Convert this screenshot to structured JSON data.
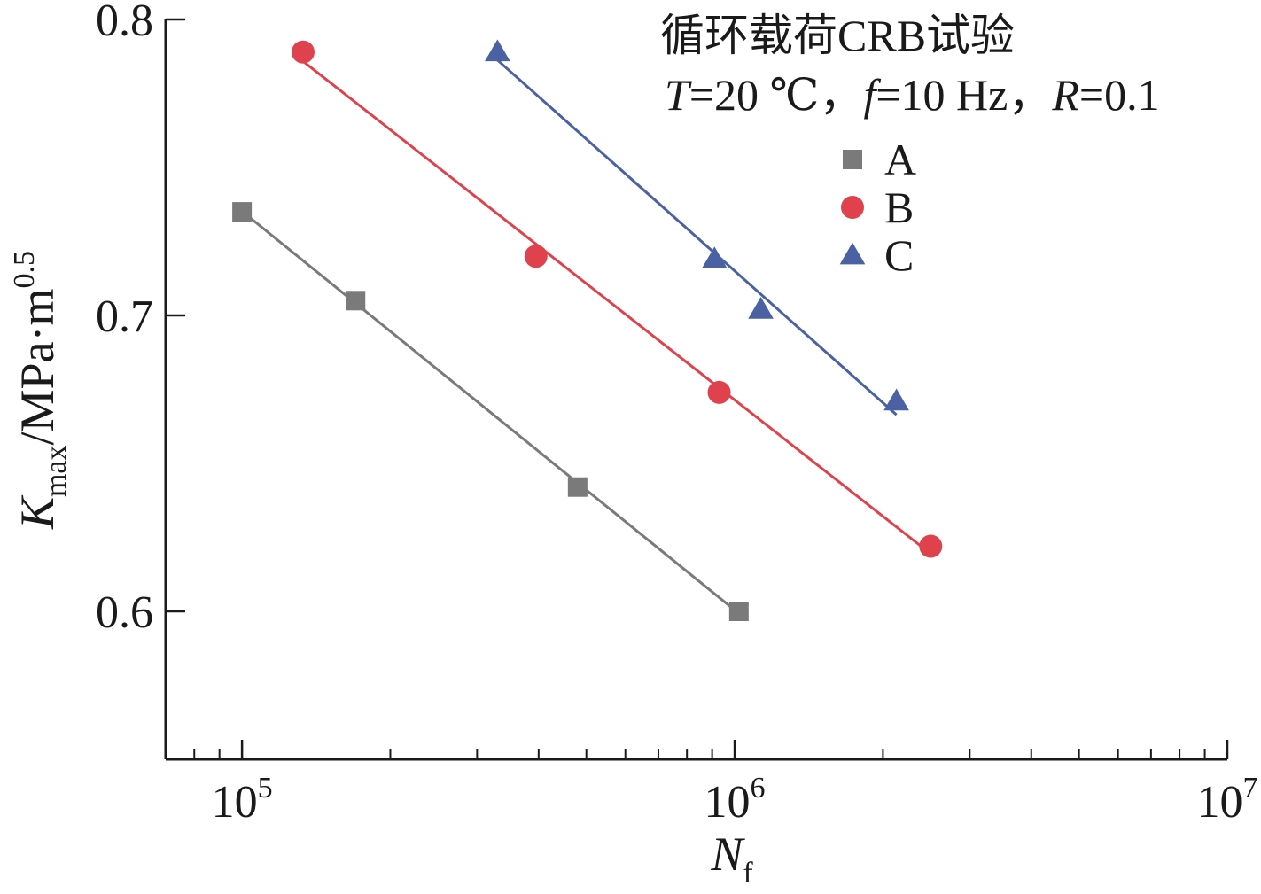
{
  "chart_data": {
    "type": "scatter",
    "x_scale": "log",
    "xlim": [
      70000,
      10000000
    ],
    "ylim": [
      0.55,
      0.8
    ],
    "x_ticks": [
      {
        "value": 100000,
        "base": "10",
        "exp": "5"
      },
      {
        "value": 1000000,
        "base": "10",
        "exp": "6"
      },
      {
        "value": 10000000,
        "base": "10",
        "exp": "7"
      }
    ],
    "y_ticks": [
      {
        "value": 0.6,
        "label": "0.6"
      },
      {
        "value": 0.7,
        "label": "0.7"
      },
      {
        "value": 0.8,
        "label": "0.8"
      }
    ],
    "xlabel": {
      "main": "N",
      "sub": "f"
    },
    "ylabel": {
      "main": "K",
      "sub": "max",
      "unit": "/MPa·m",
      "sup": "0.5"
    },
    "annotation": {
      "line1": "循环载荷CRB试验",
      "line2": {
        "T": "T",
        "t_val": "=20 ℃，",
        "f": "f",
        "f_val": "=10 Hz，",
        "R": "R",
        "r_val": "=0.1"
      }
    },
    "legend_position": "top-right",
    "grid": false,
    "series": [
      {
        "name": "A",
        "marker": "square",
        "color": "#7a7a7a",
        "points": [
          {
            "x": 100000,
            "y": 0.735
          },
          {
            "x": 170000,
            "y": 0.705
          },
          {
            "x": 480000,
            "y": 0.642
          },
          {
            "x": 1020000,
            "y": 0.6
          }
        ]
      },
      {
        "name": "B",
        "marker": "circle",
        "color": "#e0424d",
        "points": [
          {
            "x": 133000,
            "y": 0.789
          },
          {
            "x": 395000,
            "y": 0.72
          },
          {
            "x": 930000,
            "y": 0.674
          },
          {
            "x": 2500000,
            "y": 0.622
          }
        ]
      },
      {
        "name": "C",
        "marker": "triangle",
        "color": "#4a62a4",
        "points": [
          {
            "x": 330000,
            "y": 0.789
          },
          {
            "x": 910000,
            "y": 0.719
          },
          {
            "x": 1130000,
            "y": 0.702
          },
          {
            "x": 2130000,
            "y": 0.671
          }
        ]
      }
    ]
  }
}
